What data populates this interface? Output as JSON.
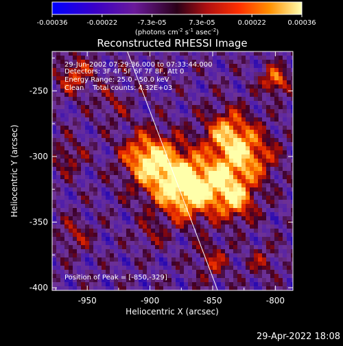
{
  "chart_data": {
    "type": "heatmap",
    "title": "Reconstructed RHESSI Image",
    "xlabel": "Heliocentric X (arcsec)",
    "ylabel": "Heliocentric Y (arcsec)",
    "xlim": [
      -978,
      -786
    ],
    "ylim": [
      -402,
      -220
    ],
    "x_ticks": [
      -950,
      -900,
      -850,
      -800
    ],
    "y_ticks": [
      -250,
      -300,
      -350,
      -400
    ],
    "x_tick_labels": [
      "-950",
      "-900",
      "-850",
      "-800"
    ],
    "y_tick_labels": [
      "-250",
      "-300",
      "-350",
      "-400"
    ],
    "colorbar": {
      "tick_labels": [
        "-0.00036",
        "-0.00022",
        "-7.3e-05",
        "7.3e-05",
        "0.00022",
        "0.00036"
      ],
      "units_label": "(photons cm",
      "units_sup1": "-2",
      "units_mid": " s",
      "units_sup2": "-1",
      "units_mid2": " asec",
      "units_sup3": "-2",
      "units_end": ")",
      "range": [
        -0.00036,
        0.00036
      ]
    },
    "annotations": [
      "29-Jun-2002 07:29:36.000 to 07:33:44.000",
      "Detectors: 3F 4F 5F 6F 7F 8F, Att 0",
      "Energy Range: 25.0 - 50.0 keV",
      "Clean    Total counts: 4.32E+03"
    ],
    "peak_label": "Position of Peak = [-850,-329]",
    "peak": [
      -850,
      -329
    ],
    "limb_line": [
      [
        -918,
        -220
      ],
      [
        -846,
        -402
      ]
    ],
    "timestamp": "29-Apr-2022 18:08"
  }
}
